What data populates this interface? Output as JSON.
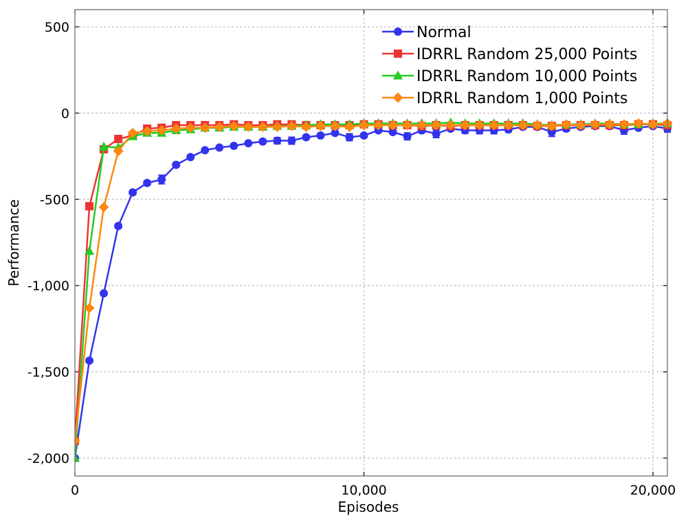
{
  "chart_data": {
    "type": "line",
    "title": "",
    "xlabel": "Episodes",
    "ylabel": "Performance",
    "xlim": [
      0,
      20500
    ],
    "ylim": [
      -2100,
      600
    ],
    "xticks": [
      0,
      10000,
      20000
    ],
    "xtick_labels": [
      "0",
      "10,000",
      "20,000"
    ],
    "yticks": [
      500,
      0,
      -500,
      -1000,
      -1500,
      -2000
    ],
    "ytick_labels": [
      "500",
      "0",
      "-500",
      "-1,000",
      "-1,500",
      "-2,000"
    ],
    "grid": true,
    "legend_position": "top-right",
    "x": [
      0,
      500,
      1000,
      1500,
      2000,
      2500,
      3000,
      3500,
      4000,
      4500,
      5000,
      5500,
      6000,
      6500,
      7000,
      7500,
      8000,
      8500,
      9000,
      9500,
      10000,
      10500,
      11000,
      11500,
      12000,
      12500,
      13000,
      13500,
      14000,
      14500,
      15000,
      15500,
      16000,
      16500,
      17000,
      17500,
      18000,
      18500,
      19000,
      19500,
      20000,
      20500
    ],
    "series": [
      {
        "name": "Normal",
        "color": "#3333ee",
        "marker": "circle",
        "values": [
          -2000,
          -1435,
          -1045,
          -655,
          -460,
          -405,
          -385,
          -300,
          -255,
          -215,
          -200,
          -190,
          -175,
          -165,
          -160,
          -160,
          -140,
          -130,
          -115,
          -140,
          -130,
          -100,
          -110,
          -135,
          -100,
          -120,
          -90,
          -100,
          -100,
          -100,
          -95,
          -80,
          -80,
          -110,
          -90,
          -80,
          -75,
          -75,
          -100,
          -85,
          -75,
          -90
        ],
        "errors": [
          5,
          10,
          10,
          10,
          10,
          12,
          25,
          12,
          10,
          8,
          8,
          8,
          8,
          10,
          18,
          20,
          12,
          10,
          10,
          20,
          12,
          10,
          10,
          20,
          15,
          22,
          12,
          18,
          20,
          20,
          15,
          10,
          10,
          25,
          15,
          10,
          10,
          10,
          22,
          12,
          10,
          20
        ]
      },
      {
        "name": "IDRRL Random 25,000 Points",
        "color": "#ee3333",
        "marker": "square",
        "values": [
          -1900,
          -540,
          -210,
          -150,
          -130,
          -90,
          -85,
          -70,
          -70,
          -70,
          -70,
          -65,
          -70,
          -70,
          -65,
          -65,
          -70,
          -70,
          -70,
          -70,
          -65,
          -65,
          -70,
          -70,
          -75,
          -70,
          -75,
          -70,
          -70,
          -70,
          -70,
          -70,
          -75,
          -75,
          -70,
          -70,
          -70,
          -70,
          -70,
          -65,
          -65,
          -70
        ]
      },
      {
        "name": "IDRRL Random 10,000 Points",
        "color": "#22cc22",
        "marker": "triangle",
        "values": [
          -2000,
          -800,
          -195,
          -200,
          -135,
          -115,
          -115,
          -100,
          -95,
          -85,
          -85,
          -80,
          -80,
          -80,
          -75,
          -75,
          -70,
          -65,
          -65,
          -65,
          -60,
          -60,
          -60,
          -60,
          -60,
          -60,
          -55,
          -60,
          -60,
          -60,
          -60,
          -60,
          -65,
          -70,
          -65,
          -65,
          -60,
          -60,
          -65,
          -65,
          -60,
          -60
        ]
      },
      {
        "name": "IDRRL Random 1,000 Points",
        "color": "#ff8811",
        "marker": "diamond",
        "values": [
          -1900,
          -1130,
          -545,
          -220,
          -115,
          -105,
          -100,
          -90,
          -85,
          -85,
          -80,
          -75,
          -80,
          -80,
          -80,
          -75,
          -80,
          -75,
          -75,
          -80,
          -70,
          -70,
          -70,
          -70,
          -70,
          -70,
          -70,
          -70,
          -70,
          -70,
          -70,
          -70,
          -70,
          -75,
          -65,
          -70,
          -65,
          -65,
          -65,
          -60,
          -65,
          -60
        ]
      }
    ]
  }
}
